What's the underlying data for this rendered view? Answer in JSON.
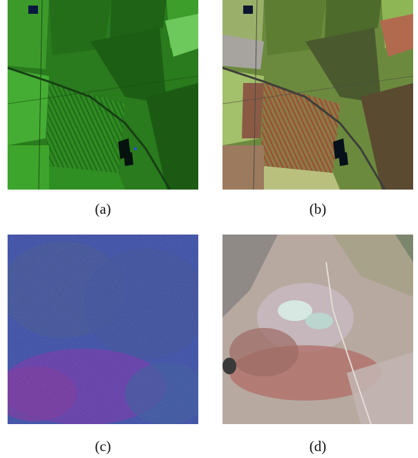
{
  "figure": {
    "panels": [
      {
        "caption": "(a)",
        "image_kind": "satellite-image-false-color-green-farmland"
      },
      {
        "caption": "(b)",
        "image_kind": "satellite-image-true-color-farmland"
      },
      {
        "caption": "(c)",
        "image_kind": "satellite-image-noisy-blue-purple"
      },
      {
        "caption": "(d)",
        "image_kind": "satellite-image-true-color-desert"
      }
    ]
  }
}
